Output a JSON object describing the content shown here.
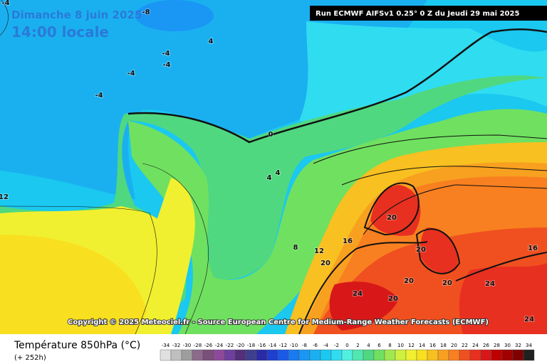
{
  "header": {
    "date": "Dimanche 8 juin 2025",
    "time": "14:00 locale",
    "run": "Run ECMWF AIFSv1 0.25° 0 Z du Jeudi 29 mai 2025"
  },
  "copyright": "Copyright © 2025 Meteociel.fr - Source European Centre for Medium-Range Weather Forecasts (ECMWF)",
  "footer": {
    "title": "Température 850hPa (°C)",
    "lead": "(+ 252h)"
  },
  "contour_labels": [
    -4,
    -8,
    4,
    -4,
    -4,
    -4,
    -4,
    0,
    4,
    4,
    12,
    8,
    12,
    16,
    20,
    20,
    20,
    20,
    20,
    24,
    20,
    24,
    16,
    24
  ],
  "scale": {
    "values": [
      -34,
      -32,
      -30,
      -28,
      -26,
      -24,
      -22,
      -20,
      -18,
      -16,
      -14,
      -12,
      -10,
      -8,
      -6,
      -4,
      -2,
      0,
      2,
      4,
      6,
      8,
      10,
      12,
      14,
      16,
      18,
      20,
      22,
      24,
      26,
      28,
      30,
      32,
      34
    ],
    "colors": [
      "#e0e0e0",
      "#bfbfbf",
      "#9e9e9e",
      "#8c6a8c",
      "#7a4f7a",
      "#8e4a9a",
      "#6e3f9e",
      "#54307a",
      "#3f3f8f",
      "#2a2aa8",
      "#1f3fd0",
      "#1a5ae6",
      "#1a7af0",
      "#1a96f5",
      "#1ab0f0",
      "#1ac8f0",
      "#30dcf0",
      "#50f0e0",
      "#50e8b0",
      "#50d880",
      "#70e060",
      "#a0e850",
      "#d0f040",
      "#f0f030",
      "#f8e020",
      "#f8c020",
      "#f8a020",
      "#f88020",
      "#f05020",
      "#e83020",
      "#d81818",
      "#c00000",
      "#a00000",
      "#800000",
      "#202020"
    ]
  }
}
